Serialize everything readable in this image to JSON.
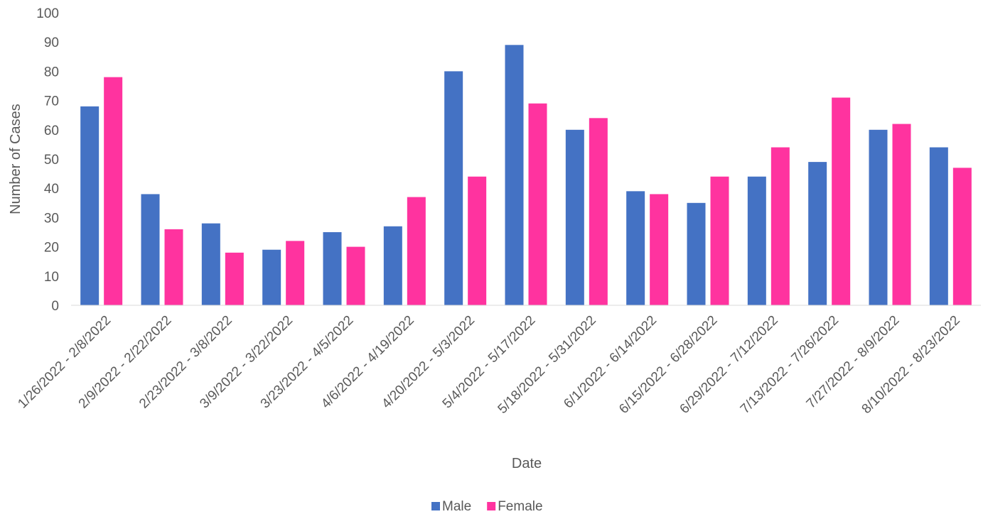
{
  "chart_data": {
    "type": "bar",
    "xlabel": "Date",
    "ylabel": "Number of Cases",
    "ylim": [
      0,
      100
    ],
    "yticks": [
      0,
      10,
      20,
      30,
      40,
      50,
      60,
      70,
      80,
      90,
      100
    ],
    "grid": false,
    "legend_position": "bottom",
    "categories": [
      "1/26/2022 - 2/8/2022",
      "2/9/2022 - 2/22/2022",
      "2/23/2022 - 3/8/2022",
      "3/9/2022 - 3/22/2022",
      "3/23/2022 - 4/5/2022",
      "4/6/2022 - 4/19/2022",
      "4/20/2022 - 5/3/2022",
      "5/4/2022 - 5/17/2022",
      "5/18/2022 - 5/31/2022",
      "6/1/2022 - 6/14/2022",
      "6/15/2022 - 6/28/2022",
      "6/29/2022 - 7/12/2022",
      "7/13/2022 - 7/26/2022",
      "7/27/2022 - 8/9/2022",
      "8/10/2022 - 8/23/2022"
    ],
    "series": [
      {
        "name": "Male",
        "color": "#4472C4",
        "values": [
          68,
          38,
          28,
          19,
          25,
          27,
          80,
          89,
          60,
          39,
          35,
          44,
          49,
          60,
          54
        ]
      },
      {
        "name": "Female",
        "color": "#FF339F",
        "values": [
          78,
          26,
          18,
          22,
          20,
          37,
          44,
          69,
          64,
          38,
          44,
          54,
          71,
          62,
          47
        ]
      }
    ]
  }
}
